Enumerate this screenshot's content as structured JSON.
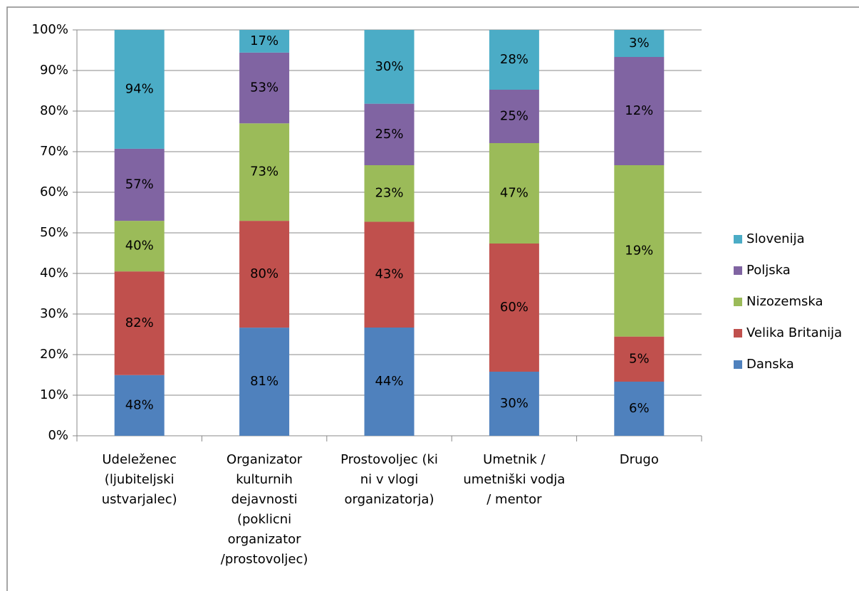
{
  "chart_data": {
    "type": "bar",
    "stacking": "percent",
    "categories": [
      [
        "Udeleženec",
        "(ljubiteljski",
        "ustvarjalec)"
      ],
      [
        "Organizator",
        "kulturnih",
        "dejavnosti",
        "(poklicni",
        "organizator",
        "/prostovoljec)"
      ],
      [
        "Prostovoljec (ki",
        "ni v vlogi",
        "organizatorja)"
      ],
      [
        "Umetnik /",
        "umetniški vodja",
        "/ mentor"
      ],
      [
        "Drugo"
      ]
    ],
    "series": [
      {
        "name": "Danska",
        "color": "#4f81bd",
        "values": [
          48,
          81,
          44,
          30,
          6
        ],
        "value_labels": [
          "48%",
          "81%",
          "44%",
          "30%",
          "6%"
        ]
      },
      {
        "name": "Velika Britanija",
        "color": "#c0504d",
        "values": [
          82,
          80,
          43,
          60,
          5
        ],
        "value_labels": [
          "82%",
          "80%",
          "43%",
          "60%",
          "5%"
        ]
      },
      {
        "name": "Nizozemska",
        "color": "#9bbb59",
        "values": [
          40,
          73,
          23,
          47,
          19
        ],
        "value_labels": [
          "40%",
          "73%",
          "23%",
          "47%",
          "19%"
        ]
      },
      {
        "name": "Poljska",
        "color": "#8064a2",
        "values": [
          57,
          53,
          25,
          25,
          12
        ],
        "value_labels": [
          "57%",
          "53%",
          "25%",
          "25%",
          "12%"
        ]
      },
      {
        "name": "Slovenija",
        "color": "#4bacc6",
        "values": [
          94,
          17,
          30,
          28,
          3
        ],
        "value_labels": [
          "94%",
          "17%",
          "30%",
          "28%",
          "3%"
        ]
      }
    ],
    "ylim": [
      0,
      100
    ],
    "yticks": [
      {
        "value": 0,
        "label": "0%"
      },
      {
        "value": 10,
        "label": "10%"
      },
      {
        "value": 20,
        "label": "20%"
      },
      {
        "value": 30,
        "label": "30%"
      },
      {
        "value": 40,
        "label": "40%"
      },
      {
        "value": 50,
        "label": "50%"
      },
      {
        "value": 60,
        "label": "60%"
      },
      {
        "value": 70,
        "label": "70%"
      },
      {
        "value": 80,
        "label": "80%"
      },
      {
        "value": 90,
        "label": "90%"
      },
      {
        "value": 100,
        "label": "100%"
      }
    ],
    "grid": true,
    "legend": "right"
  }
}
